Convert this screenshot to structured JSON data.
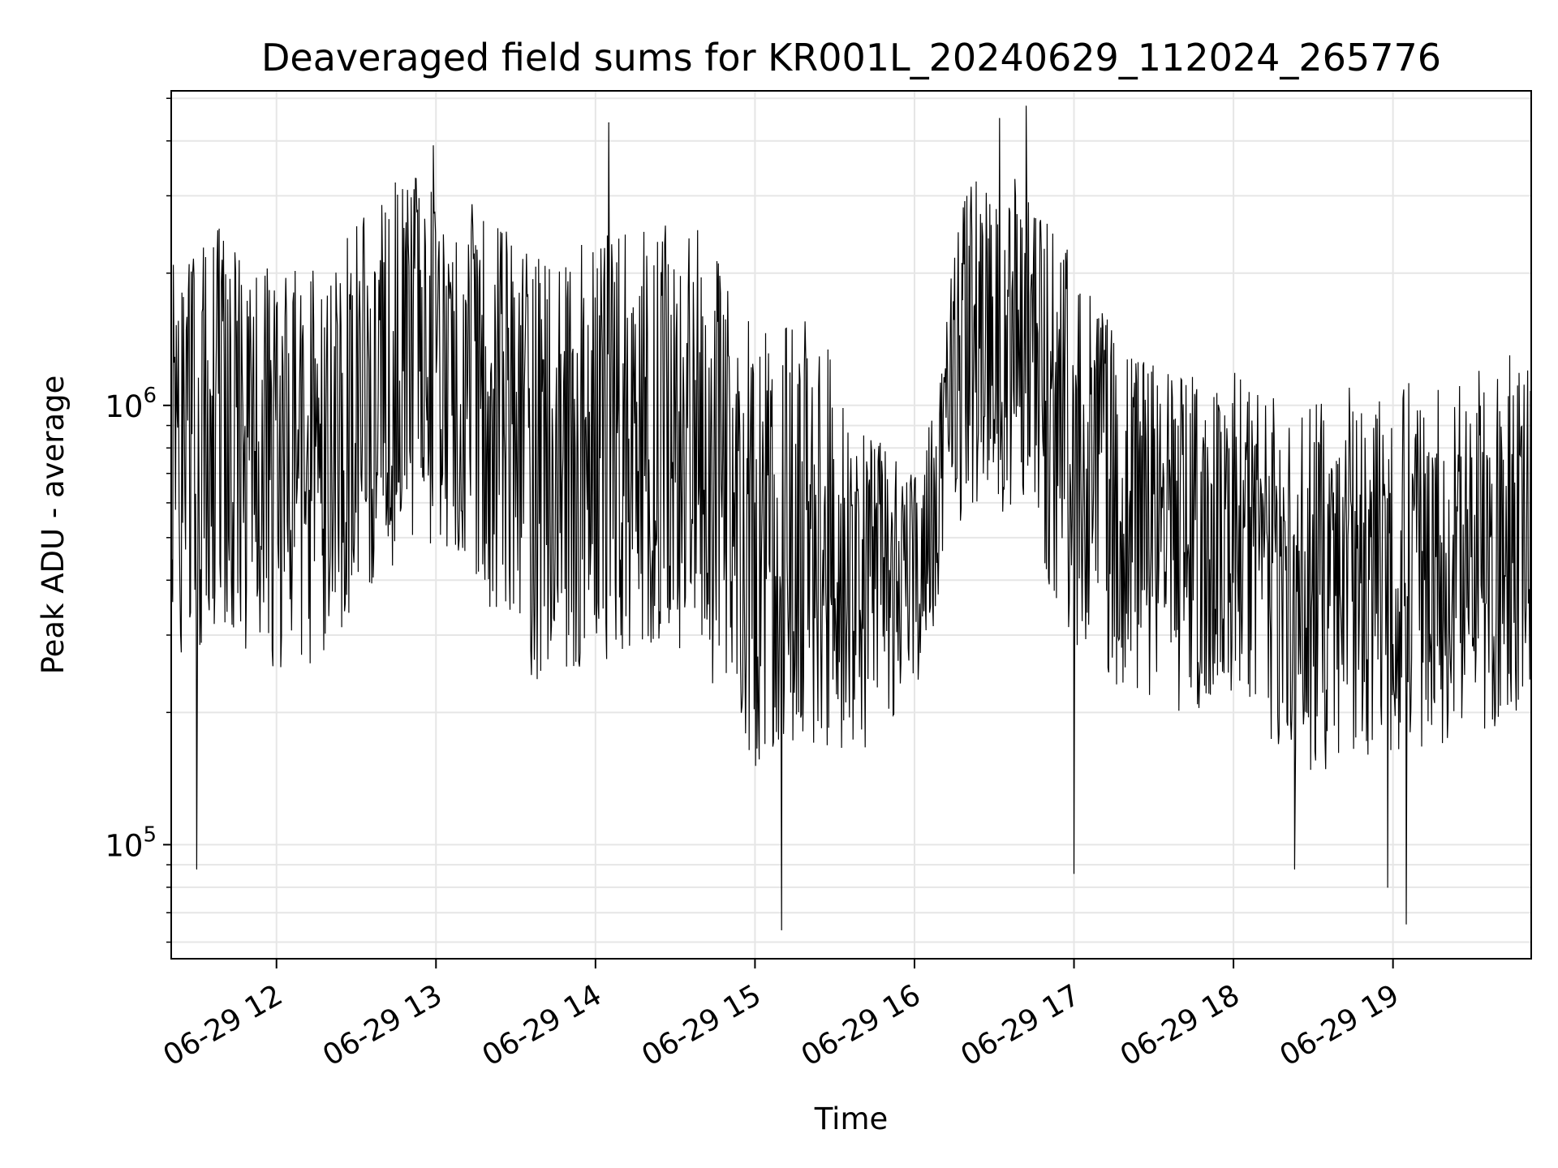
{
  "chart_data": {
    "type": "line",
    "title": "Deaveraged field sums for KR001L_20240629_112024_265776",
    "xlabel": "Time",
    "ylabel": "Peak ADU - average",
    "yscale": "log",
    "grid": true,
    "legend": "none",
    "line_color": "#000000",
    "xlim": [
      "2024-06-29 11:20:24",
      "2024-06-29 19:52:00"
    ],
    "ylim": [
      55000,
      5200000
    ],
    "xticks": [
      {
        "t": "2024-06-29 12:00",
        "label": "06-29 12"
      },
      {
        "t": "2024-06-29 13:00",
        "label": "06-29 13"
      },
      {
        "t": "2024-06-29 14:00",
        "label": "06-29 14"
      },
      {
        "t": "2024-06-29 15:00",
        "label": "06-29 15"
      },
      {
        "t": "2024-06-29 16:00",
        "label": "06-29 16"
      },
      {
        "t": "2024-06-29 17:00",
        "label": "06-29 17"
      },
      {
        "t": "2024-06-29 18:00",
        "label": "06-29 18"
      },
      {
        "t": "2024-06-29 19:00",
        "label": "06-29 19"
      }
    ],
    "yticks": [
      {
        "value": 100000,
        "base": "10",
        "exp": "5"
      },
      {
        "value": 1000000,
        "base": "10",
        "exp": "6"
      }
    ],
    "series": [
      {
        "name": "",
        "envelope": [
          {
            "t": "2024-06-29 11:20",
            "low": 260000,
            "high": 2100000,
            "center": 700000
          },
          {
            "t": "2024-06-29 11:40",
            "low": 290000,
            "high": 2600000,
            "center": 800000
          },
          {
            "t": "2024-06-29 12:00",
            "low": 250000,
            "high": 2000000,
            "center": 650000
          },
          {
            "t": "2024-06-29 12:20",
            "low": 260000,
            "high": 2200000,
            "center": 750000
          },
          {
            "t": "2024-06-29 12:40",
            "low": 420000,
            "high": 3200000,
            "center": 1200000
          },
          {
            "t": "2024-06-29 13:00",
            "low": 480000,
            "high": 3400000,
            "center": 1350000
          },
          {
            "t": "2024-06-29 13:20",
            "low": 350000,
            "high": 2700000,
            "center": 1000000
          },
          {
            "t": "2024-06-29 13:40",
            "low": 220000,
            "high": 2200000,
            "center": 700000
          },
          {
            "t": "2024-06-29 14:00",
            "low": 260000,
            "high": 2400000,
            "center": 800000
          },
          {
            "t": "2024-06-29 14:20",
            "low": 280000,
            "high": 2600000,
            "center": 850000
          },
          {
            "t": "2024-06-29 14:40",
            "low": 260000,
            "high": 2500000,
            "center": 800000
          },
          {
            "t": "2024-06-29 15:00",
            "low": 150000,
            "high": 1500000,
            "center": 450000
          },
          {
            "t": "2024-06-29 15:20",
            "low": 170000,
            "high": 1700000,
            "center": 500000
          },
          {
            "t": "2024-06-29 15:40",
            "low": 160000,
            "high": 900000,
            "center": 380000
          },
          {
            "t": "2024-06-29 16:00",
            "low": 220000,
            "high": 700000,
            "center": 370000
          },
          {
            "t": "2024-06-29 16:20",
            "low": 600000,
            "high": 3300000,
            "center": 1500000
          },
          {
            "t": "2024-06-29 16:40",
            "low": 550000,
            "high": 3300000,
            "center": 1400000
          },
          {
            "t": "2024-06-29 17:00",
            "low": 280000,
            "high": 2200000,
            "center": 750000
          },
          {
            "t": "2024-06-29 17:20",
            "low": 220000,
            "high": 1300000,
            "center": 550000
          },
          {
            "t": "2024-06-29 17:40",
            "low": 200000,
            "high": 1200000,
            "center": 500000
          },
          {
            "t": "2024-06-29 18:00",
            "low": 200000,
            "high": 1200000,
            "center": 500000
          },
          {
            "t": "2024-06-29 18:20",
            "low": 140000,
            "high": 1000000,
            "center": 380000
          },
          {
            "t": "2024-06-29 18:40",
            "low": 150000,
            "high": 1100000,
            "center": 400000
          },
          {
            "t": "2024-06-29 19:00",
            "low": 160000,
            "high": 1200000,
            "center": 420000
          },
          {
            "t": "2024-06-29 19:20",
            "low": 170000,
            "high": 1100000,
            "center": 420000
          },
          {
            "t": "2024-06-29 19:40",
            "low": 180000,
            "high": 1300000,
            "center": 450000
          }
        ],
        "notable_points": [
          {
            "t": "2024-06-29 11:30",
            "value": 88000
          },
          {
            "t": "2024-06-29 12:59",
            "value": 3900000
          },
          {
            "t": "2024-06-29 14:05",
            "value": 4400000
          },
          {
            "t": "2024-06-29 15:10",
            "value": 64000
          },
          {
            "t": "2024-06-29 16:32",
            "value": 4500000
          },
          {
            "t": "2024-06-29 16:42",
            "value": 4800000
          },
          {
            "t": "2024-06-29 17:00",
            "value": 86000
          },
          {
            "t": "2024-06-29 18:23",
            "value": 88000
          },
          {
            "t": "2024-06-29 18:58",
            "value": 80000
          },
          {
            "t": "2024-06-29 19:05",
            "value": 66000
          }
        ]
      }
    ]
  }
}
